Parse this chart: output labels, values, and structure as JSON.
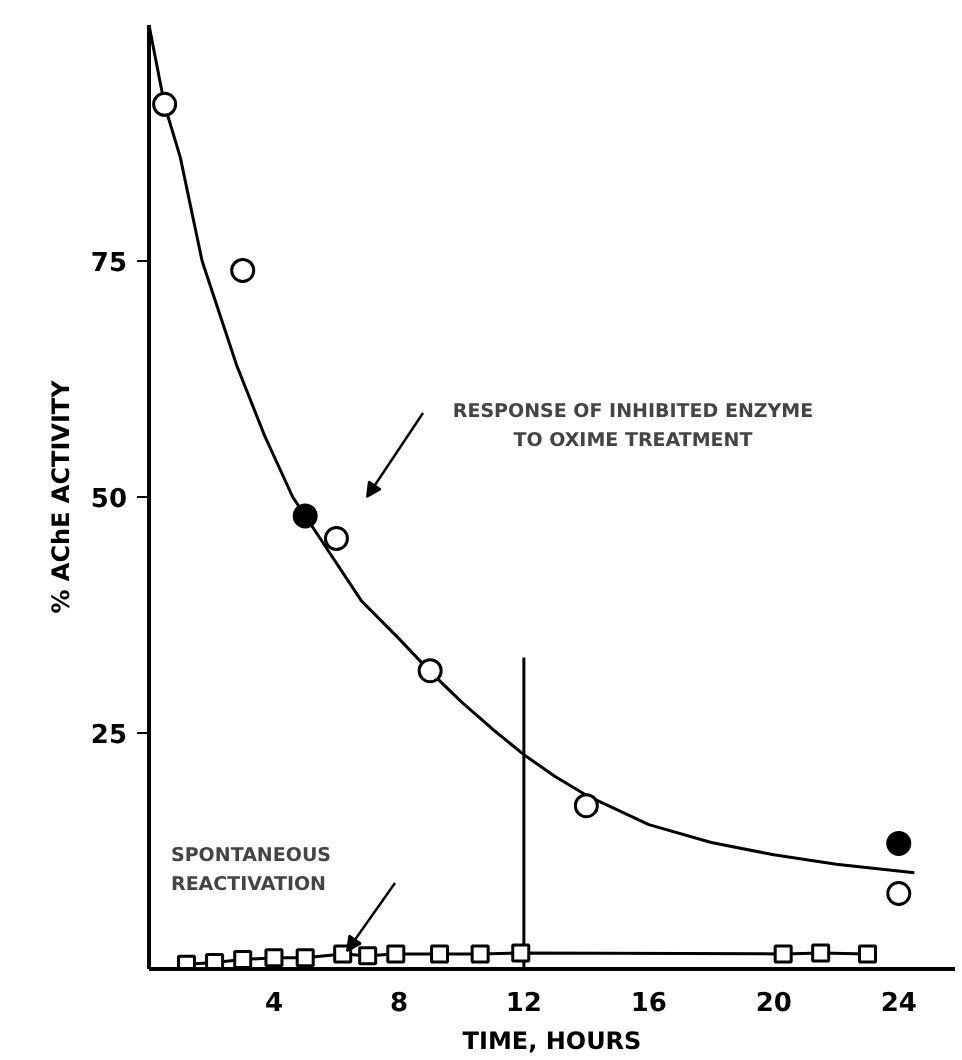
{
  "chart_data": {
    "type": "scatter",
    "xlabel": "TIME, HOURS",
    "ylabel": "% AChE ACTIVITY",
    "xlim": [
      0,
      25.8
    ],
    "ylim": [
      0,
      100
    ],
    "xticks": [
      4,
      8,
      12,
      16,
      20,
      24
    ],
    "yticks": [
      25,
      50,
      75
    ],
    "grid": false,
    "series": [
      {
        "type": "line",
        "color": "#000000",
        "marker": "none",
        "x": [
          0,
          0.5,
          1,
          1.7,
          2.8,
          3.7,
          4.6,
          5.5,
          6.8,
          8,
          9,
          10,
          11,
          12,
          13,
          14,
          16,
          18,
          20,
          22,
          24.5
        ],
        "values": [
          100,
          91.5,
          86,
          75,
          64,
          56.5,
          50,
          45.5,
          39,
          35,
          31.5,
          28.3,
          25.4,
          22.7,
          20.4,
          18.4,
          15.3,
          13.4,
          12.1,
          11.1,
          10.2
        ]
      },
      {
        "type": "line",
        "color": "#000000",
        "marker": "none",
        "x": [
          12,
          12
        ],
        "values": [
          0,
          33
        ]
      },
      {
        "color": "#ffffff",
        "marker": "circle",
        "x": [
          0.5,
          3,
          6,
          9,
          14,
          24
        ],
        "values": [
          91.6,
          74,
          45.6,
          31.6,
          17.3,
          8
        ]
      },
      {
        "color": "#000000",
        "marker": "circle",
        "x": [
          5,
          24
        ],
        "values": [
          48,
          13.3
        ]
      },
      {
        "type": "line",
        "color": "#000000",
        "marker": "square",
        "x": [
          1.2,
          2.1,
          3,
          4,
          5,
          6.2,
          7,
          7.9,
          9.3,
          10.6,
          11.9,
          20.3,
          21.5,
          23
        ],
        "values": [
          0.5,
          0.7,
          1,
          1.2,
          1.2,
          1.6,
          1.4,
          1.6,
          1.6,
          1.6,
          1.7,
          1.6,
          1.7,
          1.6
        ]
      }
    ],
    "annotations": [
      "RESPONSE OF INHIBITED ENZYME\nTO OXIME TREATMENT",
      "SPONTANEOUS\nREACTIVATION"
    ]
  }
}
